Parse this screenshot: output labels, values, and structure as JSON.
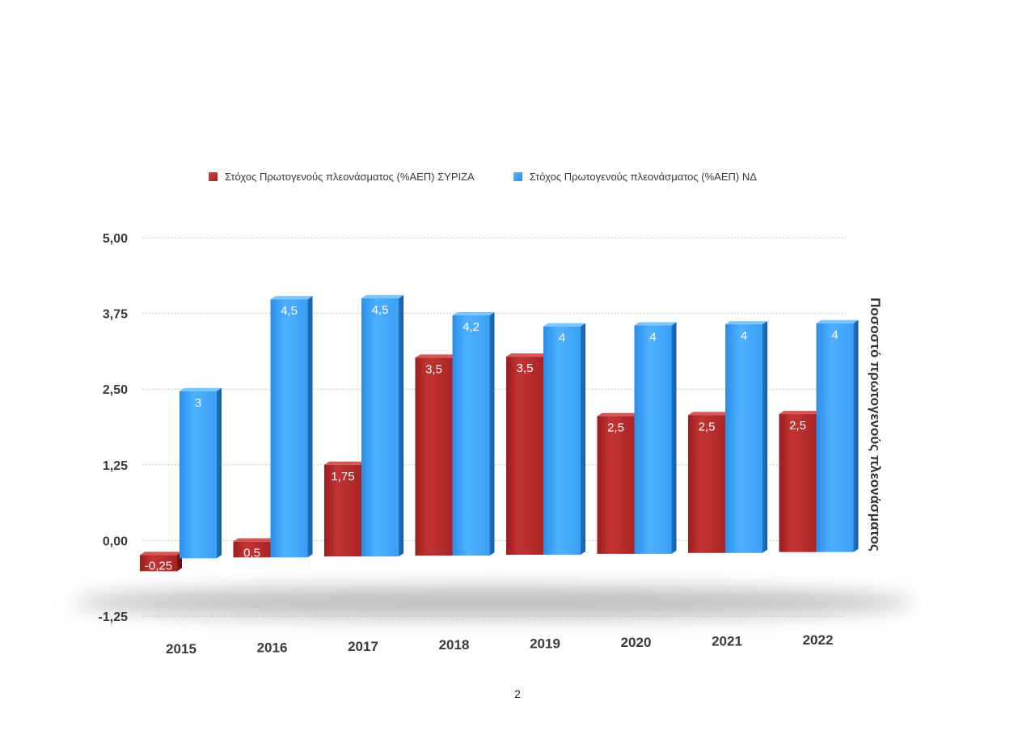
{
  "chart_data": {
    "type": "bar",
    "title": "",
    "xlabel": "",
    "ylabel": "Ποσοστό πρωτογενούς πλεονάσματος",
    "categories": [
      "2015",
      "2016",
      "2017",
      "2018",
      "2019",
      "2020",
      "2021",
      "2022"
    ],
    "series": [
      {
        "name": "Στόχος Πρωτογενούς πλεονάσματος (%ΑΕΠ) ΣΥΡΙΖΑ",
        "color": "#b52a2a",
        "values": [
          -0.25,
          0.5,
          1.75,
          3.5,
          3.5,
          2.5,
          2.5,
          2.5
        ],
        "labels": [
          "-0,25",
          "0,5",
          "1,75",
          "3,5",
          "3,5",
          "2,5",
          "2,5",
          "2,5"
        ]
      },
      {
        "name": "Στόχος Πρωτογενούς πλεονάσματος (%ΑΕΠ) ΝΔ",
        "color": "#3a9ef0",
        "values": [
          3,
          4.5,
          4.5,
          4.2,
          4,
          4,
          4,
          4
        ],
        "labels": [
          "3",
          "4,5",
          "4,5",
          "4,2",
          "4",
          "4",
          "4",
          "4"
        ]
      }
    ],
    "y_ticks": [
      5,
      3.75,
      2.5,
      1.25,
      0,
      -1.25
    ],
    "y_tick_labels": [
      "5,00",
      "3,75",
      "2,50",
      "1,25",
      "0,00",
      "-1,25"
    ],
    "ylim": [
      -1.25,
      5
    ],
    "grid": true,
    "legend_position": "top"
  },
  "page_number": "2"
}
